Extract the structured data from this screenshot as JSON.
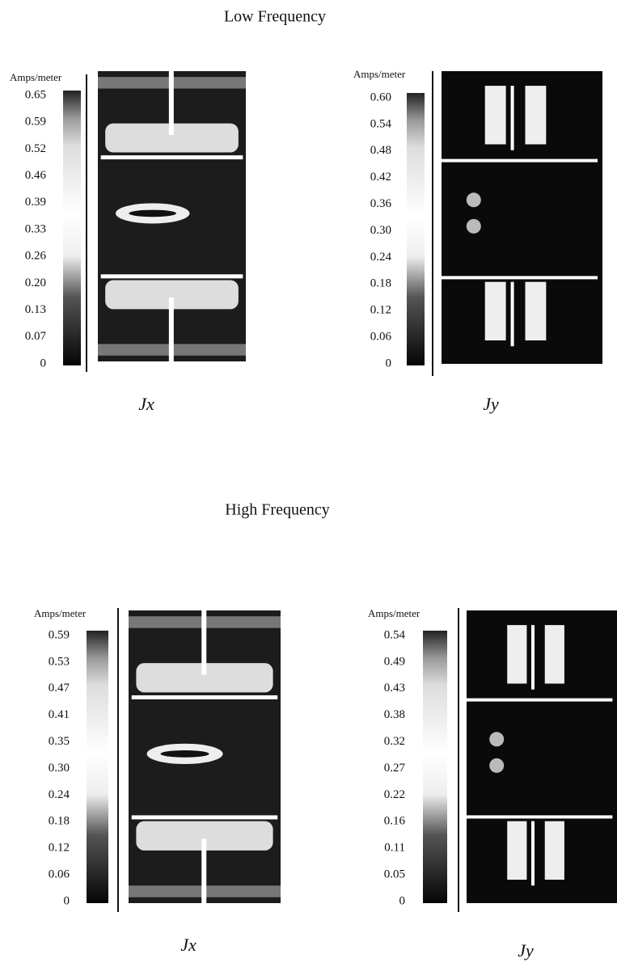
{
  "sections": [
    {
      "title": "Low Frequency",
      "panels": [
        {
          "unit": "Amps/meter",
          "scale": [
            "0.65",
            "0.59",
            "0.52",
            "0.46",
            "0.39",
            "0.33",
            "0.26",
            "0.20",
            "0.13",
            "0.07",
            "0"
          ],
          "caption": "Jx"
        },
        {
          "unit": "Amps/meter",
          "scale": [
            "0.60",
            "0.54",
            "0.48",
            "0.42",
            "0.36",
            "0.30",
            "0.24",
            "0.18",
            "0.12",
            "0.06",
            "0"
          ],
          "caption": "Jy"
        }
      ]
    },
    {
      "title": "High Frequency",
      "panels": [
        {
          "unit": "Amps/meter",
          "scale": [
            "0.59",
            "0.53",
            "0.47",
            "0.41",
            "0.35",
            "0.30",
            "0.24",
            "0.18",
            "0.12",
            "0.06",
            "0"
          ],
          "caption": "Jx"
        },
        {
          "unit": "Amps/meter",
          "scale": [
            "0.54",
            "0.49",
            "0.43",
            "0.38",
            "0.32",
            "0.27",
            "0.22",
            "0.16",
            "0.11",
            "0.05",
            "0"
          ],
          "caption": "Jy"
        }
      ]
    }
  ]
}
